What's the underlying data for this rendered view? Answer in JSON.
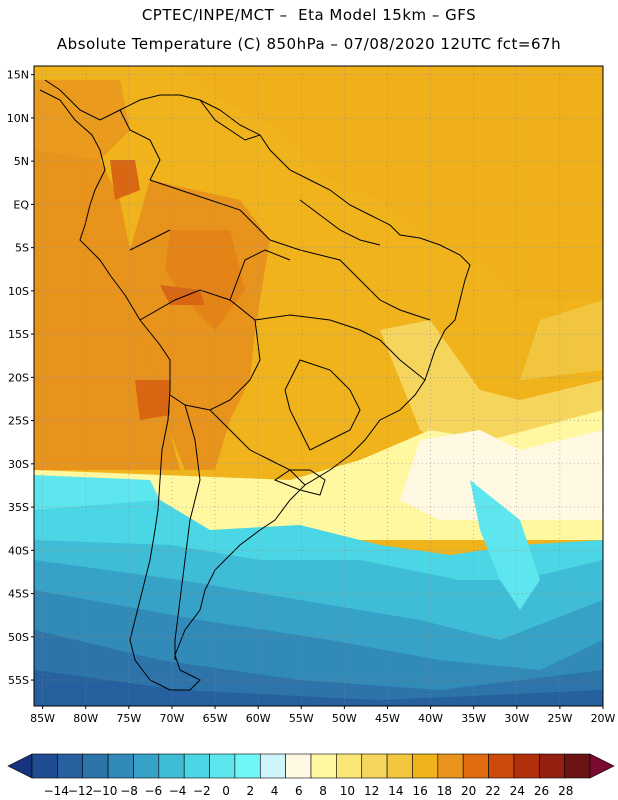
{
  "header": {
    "line1": "CPTEC/INPE/MCT –  Eta Model 15km – GFS",
    "line2": "Absolute Temperature (C) 850hPa – 07/08/2020 12UTC fct=67h"
  },
  "map": {
    "variable": "Absolute Temperature",
    "units": "C",
    "level": "850hPa",
    "lon_range": [
      -86,
      -20
    ],
    "lat_range": [
      -58,
      16
    ],
    "lat_ticks": [
      {
        "value": 15,
        "label": "15N"
      },
      {
        "value": 10,
        "label": "10N"
      },
      {
        "value": 5,
        "label": "5N"
      },
      {
        "value": 0,
        "label": "EQ"
      },
      {
        "value": -5,
        "label": "5S"
      },
      {
        "value": -10,
        "label": "10S"
      },
      {
        "value": -15,
        "label": "15S"
      },
      {
        "value": -20,
        "label": "20S"
      },
      {
        "value": -25,
        "label": "25S"
      },
      {
        "value": -30,
        "label": "30S"
      },
      {
        "value": -35,
        "label": "35S"
      },
      {
        "value": -40,
        "label": "40S"
      },
      {
        "value": -45,
        "label": "45S"
      },
      {
        "value": -50,
        "label": "50S"
      },
      {
        "value": -55,
        "label": "55S"
      }
    ],
    "lon_ticks": [
      {
        "value": -85,
        "label": "85W"
      },
      {
        "value": -80,
        "label": "80W"
      },
      {
        "value": -75,
        "label": "75W"
      },
      {
        "value": -70,
        "label": "70W"
      },
      {
        "value": -65,
        "label": "65W"
      },
      {
        "value": -60,
        "label": "60W"
      },
      {
        "value": -55,
        "label": "55W"
      },
      {
        "value": -50,
        "label": "50W"
      },
      {
        "value": -45,
        "label": "45W"
      },
      {
        "value": -40,
        "label": "40W"
      },
      {
        "value": -35,
        "label": "35W"
      },
      {
        "value": -30,
        "label": "30W"
      },
      {
        "value": -25,
        "label": "25W"
      },
      {
        "value": -20,
        "label": "20W"
      }
    ]
  },
  "colorbar": {
    "labels": [
      "-14",
      "-12",
      "-10",
      "-8",
      "-6",
      "-4",
      "-2",
      "0",
      "2",
      "4",
      "6",
      "8",
      "10",
      "12",
      "14",
      "16",
      "18",
      "20",
      "22",
      "24",
      "26",
      "28"
    ],
    "colors": [
      "#16337e",
      "#1f4c93",
      "#26609e",
      "#2d74ab",
      "#318ab8",
      "#37a2c7",
      "#3fbcd6",
      "#4ad6e4",
      "#5ee6ee",
      "#6ff7f7",
      "#cdf5fb",
      "#fff8e2",
      "#fff8a0",
      "#fbe777",
      "#f6d55c",
      "#f2c53e",
      "#f0b31c",
      "#e8931c",
      "#e16c10",
      "#cb4a0c",
      "#b22f0c",
      "#952011",
      "#6c1414",
      "#7a0a30"
    ]
  }
}
